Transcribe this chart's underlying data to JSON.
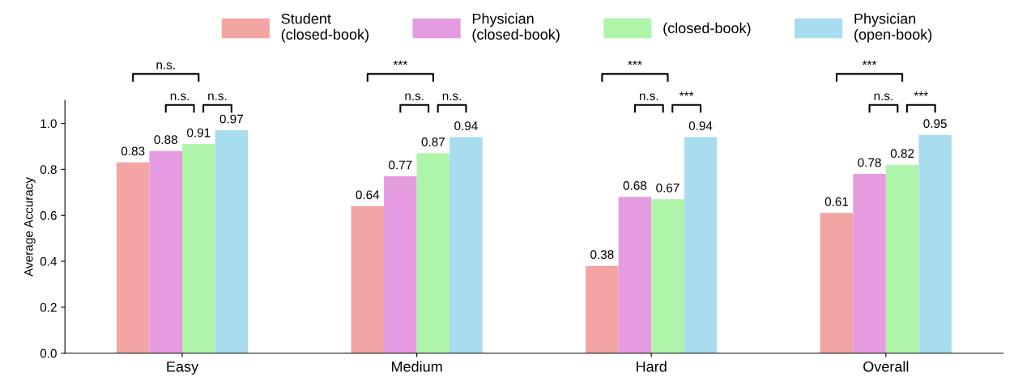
{
  "chart_data": {
    "type": "bar",
    "ylabel": "Average Accuracy",
    "categories": [
      "Easy",
      "Medium",
      "Hard",
      "Overall"
    ],
    "series": [
      {
        "name": "Student\n(closed-book)",
        "color": "#f2a5a3",
        "values": [
          0.83,
          0.64,
          0.38,
          0.61
        ]
      },
      {
        "name": "Physician\n(closed-book)",
        "color": "#e59be0",
        "values": [
          0.88,
          0.77,
          0.68,
          0.78
        ]
      },
      {
        "name": "(closed-book)",
        "color": "#aef5a9",
        "values": [
          0.91,
          0.87,
          0.67,
          0.82
        ]
      },
      {
        "name": "Physician\n(open-book)",
        "color": "#a8dcef",
        "values": [
          0.97,
          0.94,
          0.94,
          0.95
        ]
      }
    ],
    "data_labels": true,
    "ylim": [
      0,
      1.1
    ],
    "yticks": [
      {
        "value": 0,
        "label": "0.0"
      },
      {
        "value": 0.2,
        "label": "0.2"
      },
      {
        "value": 0.4,
        "label": "0.4"
      },
      {
        "value": 0.6,
        "label": "0.6"
      },
      {
        "value": 0.8,
        "label": "0.8"
      },
      {
        "value": 1.0,
        "label": "1.0"
      }
    ],
    "grid": false,
    "legend": "top",
    "annotations": [
      "n.s.",
      "n.s.",
      "n.s.",
      "***",
      "n.s.",
      "n.s.",
      "***",
      "n.s.",
      "***",
      "***",
      "n.s.",
      "***"
    ]
  }
}
